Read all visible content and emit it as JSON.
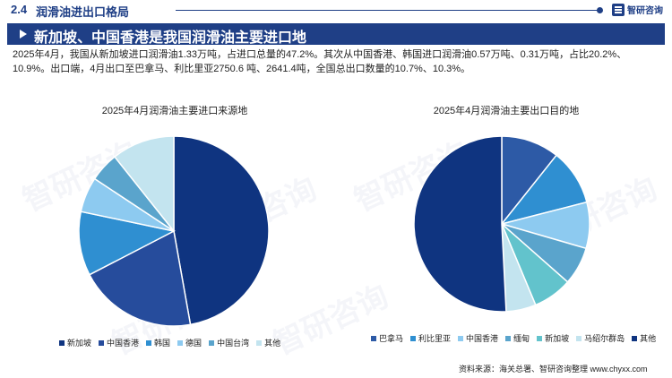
{
  "header": {
    "section_number": "2.4",
    "section_title": "润滑油进出口格局",
    "logo_text": "智研咨询"
  },
  "headline": "新加坡、中国香港是我国润滑油主要进口地",
  "summary": "2025年4月，我国从新加坡进口润滑油1.33万吨，占进口总量的47.2%。其次从中国香港、韩国进口润滑油0.57万吨、0.31万吨，占比20.2%、10.9%。出口端，4月出口至巴拿马、利比里亚2750.6 吨、2641.4吨，全国总出口数量的10.7%、10.3%。",
  "source": "资料来源：海关总署、智研咨询整理    www.chyxx.com",
  "watermark": "智研咨询",
  "colors": {
    "dark_navy": "#0f3480",
    "medium_blue": "#264c9c",
    "blue": "#2f8fd1",
    "light_blue": "#8dcaf0",
    "steel_blue": "#5aa4cc",
    "pale_blue": "#c3e4ef",
    "teal": "#62c3cc",
    "cobalt": "#2d5aa6"
  },
  "chart_data": [
    {
      "type": "pie",
      "title": "2025年4月润滑油主要进口来源地",
      "legend_position": "bottom",
      "categories": [
        "新加坡",
        "中国香港",
        "韩国",
        "德国",
        "中国台湾",
        "其他"
      ],
      "values": [
        47.2,
        20.2,
        10.9,
        6.0,
        5.0,
        10.7
      ],
      "colors": [
        "#0f3480",
        "#264c9c",
        "#2f8fd1",
        "#8dcaf0",
        "#5aa4cc",
        "#c3e4ef"
      ]
    },
    {
      "type": "pie",
      "title": "2025年4月润滑油主要出口目的地",
      "legend_position": "bottom",
      "categories": [
        "巴拿马",
        "利比里亚",
        "中国香港",
        "缅甸",
        "新加坡",
        "马绍尔群岛",
        "其他"
      ],
      "values": [
        10.7,
        10.3,
        8.5,
        7.0,
        7.2,
        5.5,
        50.8
      ],
      "colors": [
        "#2d5aa6",
        "#2f8fd1",
        "#8dcaf0",
        "#5aa4cc",
        "#62c3cc",
        "#c3e4ef",
        "#0f3480"
      ]
    }
  ]
}
